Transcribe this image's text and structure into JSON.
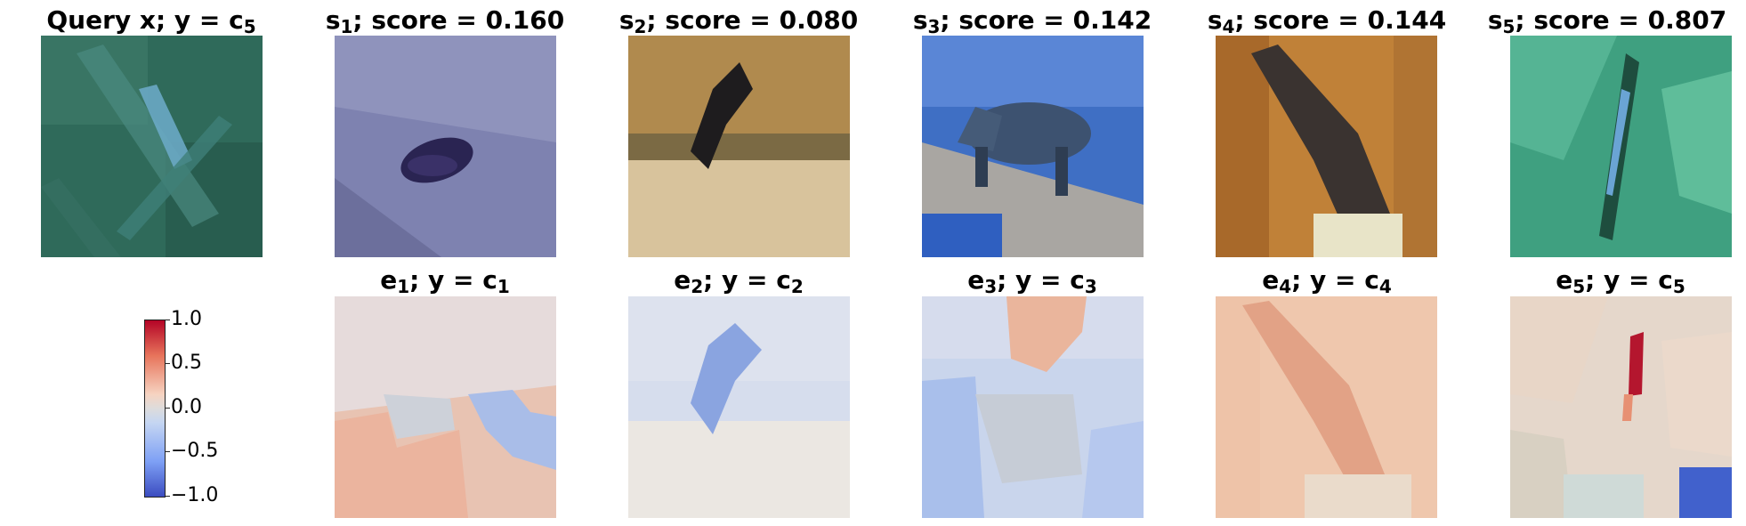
{
  "query": {
    "title": "Query x; y = c",
    "sub": "5"
  },
  "samples": [
    {
      "label": "s",
      "sub": "1",
      "score_text": "; score = 0.160"
    },
    {
      "label": "s",
      "sub": "2",
      "score_text": "; score = 0.080"
    },
    {
      "label": "s",
      "sub": "3",
      "score_text": "; score = 0.142"
    },
    {
      "label": "s",
      "sub": "4",
      "score_text": "; score = 0.144"
    },
    {
      "label": "s",
      "sub": "5",
      "score_text": "; score = 0.807"
    }
  ],
  "explanations": [
    {
      "label": "e",
      "sub": "1",
      "class_text": "; y = c",
      "class_sub": "1"
    },
    {
      "label": "e",
      "sub": "2",
      "class_text": "; y = c",
      "class_sub": "2"
    },
    {
      "label": "e",
      "sub": "3",
      "class_text": "; y = c",
      "class_sub": "3"
    },
    {
      "label": "e",
      "sub": "4",
      "class_text": "; y = c",
      "class_sub": "4"
    },
    {
      "label": "e",
      "sub": "5",
      "class_text": "; y = c",
      "class_sub": "5"
    }
  ],
  "colorbar": {
    "ticks": [
      "1.0",
      "0.5",
      "0.0",
      "−0.5",
      "−1.0"
    ],
    "colormap": [
      "#b40426",
      "#f6d3c1",
      "#dddcdc",
      "#c5d6f2",
      "#3b4cc0"
    ]
  }
}
